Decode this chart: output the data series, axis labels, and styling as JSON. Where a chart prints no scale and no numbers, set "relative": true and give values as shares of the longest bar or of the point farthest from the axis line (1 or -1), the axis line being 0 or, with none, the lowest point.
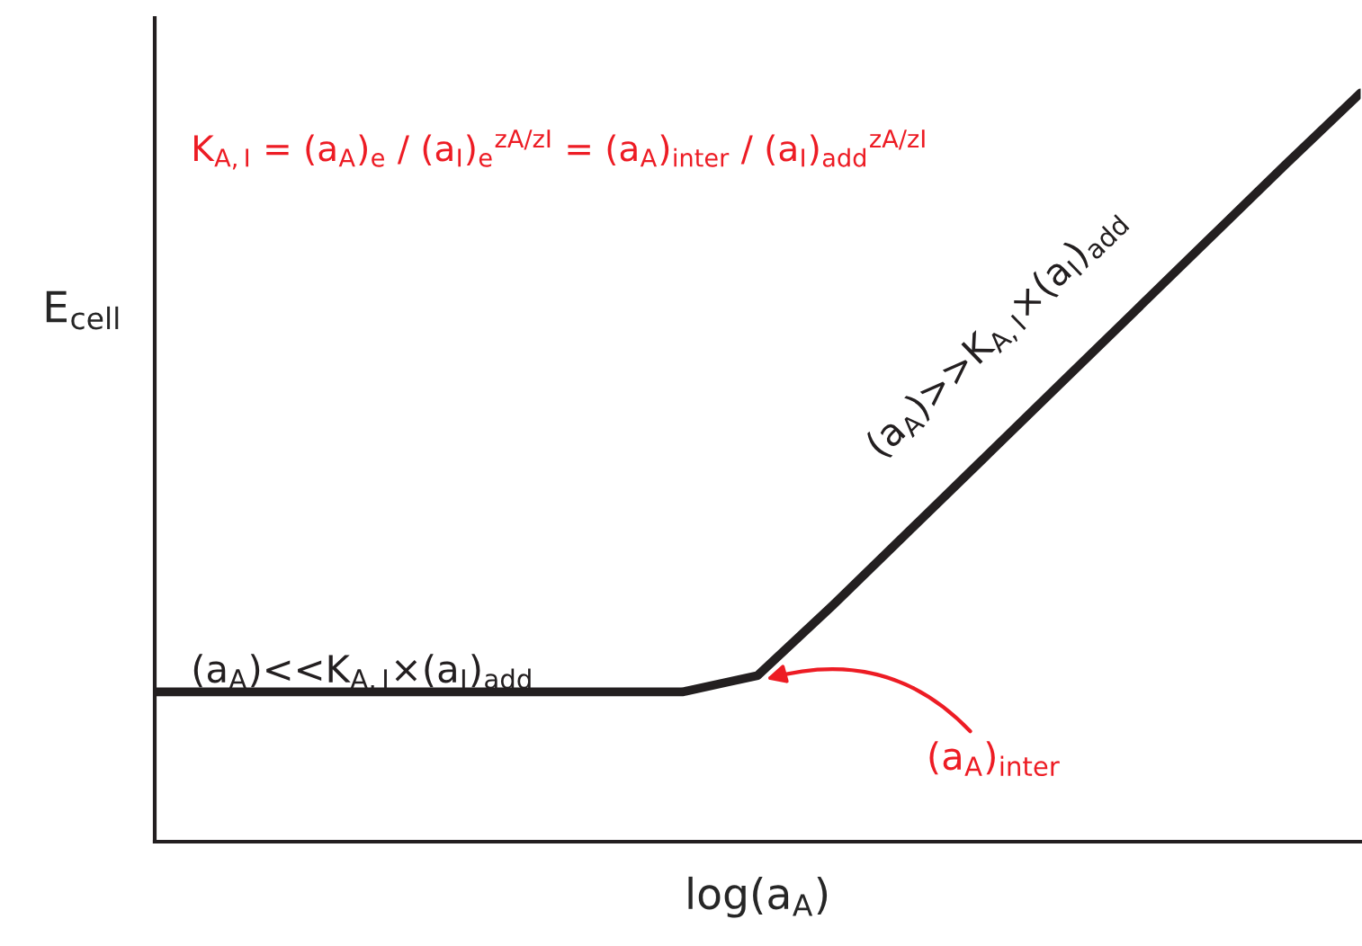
{
  "chart_data": {
    "type": "line",
    "relative": true,
    "tick_labels": false,
    "grid": false,
    "xlabel": "log(a$_{A}$)",
    "ylabel": "E$_{cell}$",
    "categories": [
      null,
      null,
      null,
      null,
      null,
      null,
      null,
      null,
      null,
      null,
      null,
      null,
      null,
      null,
      null,
      null,
      null
    ],
    "series": [
      {
        "color": "#231f20",
        "values": [
          0.2,
          0.2,
          0.2,
          0.2,
          0.2,
          0.2,
          0.2,
          0.2,
          0.222,
          0.316,
          0.414,
          0.512,
          0.61,
          0.708,
          0.806,
          0.904,
          1.0
        ]
      }
    ],
    "annotations": [
      "K$_{A,I}$ = (a$_{A}$)$_{e}$ / (a$_{I}$)$_{e}$$^{zA/zI}$ = (a$_{A}$)$_{inter}$ / (a$_{I}$)$_{add}$$^{zA/zI}$",
      "(a$_{A}$)<<K$_{A,I}$×(a$_{I}$)$_{add}$",
      "(a$_{A}$)>>K$_{A,I}$×(a$_{I}$)$_{add}$",
      "(a$_{A}$)$_{inter}$"
    ]
  }
}
